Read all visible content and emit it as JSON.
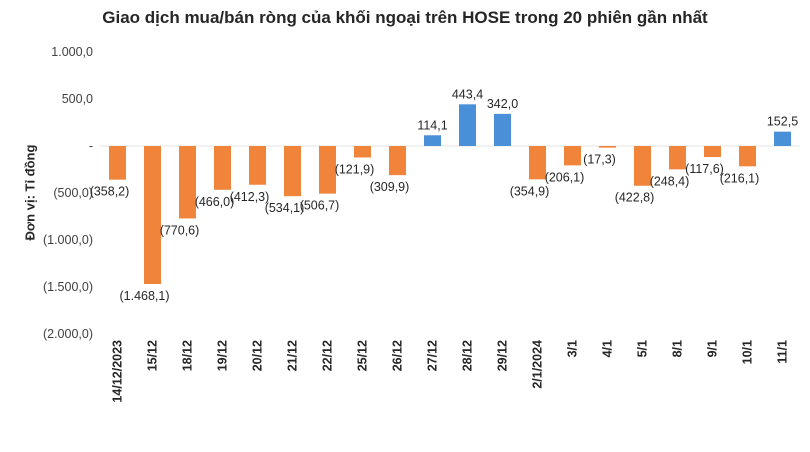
{
  "chart_data": {
    "type": "bar",
    "title": "Giao dịch mua/bán ròng của khối ngoại trên HOSE trong 20 phiên gần nhất",
    "ylabel": "Đơn vị: Tỉ đồng",
    "xlabel": "",
    "ylim": [
      -2000,
      1000
    ],
    "yticks": [
      1000,
      500,
      0,
      -500,
      -1000,
      -1500,
      -2000
    ],
    "ytick_labels": [
      "1.000,0",
      "500,0",
      "-",
      "(500,0)",
      "(1.000,0)",
      "(1.500,0)",
      "(2.000,0)"
    ],
    "categories": [
      "14/12/2023",
      "15/12",
      "18/12",
      "19/12",
      "20/12",
      "21/12",
      "22/12",
      "25/12",
      "26/12",
      "27/12",
      "28/12",
      "29/12",
      "2/1/2024",
      "3/1",
      "4/1",
      "5/1",
      "8/1",
      "9/1",
      "10/1",
      "11/1"
    ],
    "values": [
      -358.2,
      -1468.1,
      -770.6,
      -466.0,
      -412.3,
      -534.1,
      -506.7,
      -121.9,
      -309.9,
      114.1,
      443.4,
      342.0,
      -354.9,
      -206.1,
      -17.3,
      -422.8,
      -248.4,
      -117.6,
      -216.1,
      152.5
    ],
    "labels": [
      "(358,2)",
      "(1.468,1)",
      "(770,6)",
      "(466,0)",
      "(412,3)",
      "(534,1)",
      "(506,7)",
      "(121,9)",
      "(309,9)",
      "114,1",
      "443,4",
      "342,0",
      "(354,9)",
      "(206,1)",
      "(17,3)",
      "(422,8)",
      "(248,4)",
      "(117,6)",
      "(216,1)",
      "152,5"
    ],
    "colors": {
      "positive": "#4a90d9",
      "negative": "#f0843a"
    },
    "grid": false,
    "legend": "none"
  }
}
